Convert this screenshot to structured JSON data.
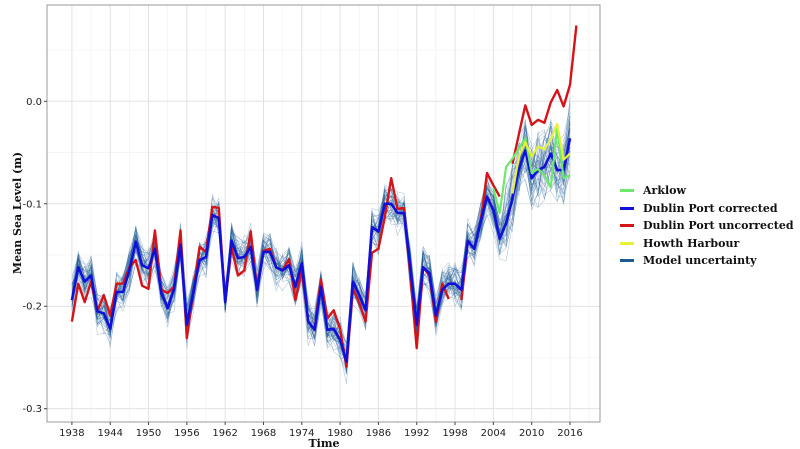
{
  "chart_data": {
    "type": "line",
    "title": "",
    "xlabel": "Time",
    "ylabel": "Mean Sea Level (m)",
    "xlim": [
      1934.1,
      2020.7
    ],
    "ylim": [
      -0.313,
      0.094
    ],
    "x_ticks": [
      "1938",
      "1944",
      "1950",
      "1956",
      "1962",
      "1968",
      "1974",
      "1980",
      "1986",
      "1992",
      "1998",
      "2004",
      "2010",
      "2016"
    ],
    "y_ticks": [
      "-0.3",
      "-0.2",
      "-0.1",
      "0.0"
    ],
    "grid": true,
    "legend_position": "right",
    "colors": {
      "Arklow": "#6ee86a",
      "Dublin Port corrected": "#1010d8",
      "Dublin Port uncorrected": "#d41418",
      "Howth Harbour": "#e6f23a",
      "Model uncertainty": "#1d5a92"
    },
    "series": [
      {
        "name": "Model uncertainty",
        "note_visible": false
      },
      {
        "name": "Dublin Port uncorrected",
        "x": [
          1938,
          1939,
          1940,
          1941,
          1942,
          1943,
          1944,
          1945,
          1946,
          1947,
          1948,
          1949,
          1950,
          1951,
          1952,
          1953,
          1954,
          1955,
          1956,
          1957,
          1958,
          1959,
          1960,
          1961,
          1962,
          1963,
          1964,
          1965,
          1966,
          1967,
          1968,
          1969,
          1970,
          1971,
          1972,
          1973,
          1974,
          1975,
          1976,
          1977,
          1978,
          1979,
          1980,
          1981,
          1982,
          1983,
          1984,
          1985,
          1986,
          1987,
          1988,
          1989,
          1990,
          1991,
          1992,
          1993,
          1994,
          1995,
          1996,
          1997,
          1998,
          1999,
          2000,
          2001,
          2002,
          2003,
          2004,
          2005,
          2006,
          2007,
          2008,
          2009,
          2010,
          2011,
          2012,
          2013,
          2014,
          2015,
          2016,
          2017
        ],
        "values": [
          -0.215,
          -0.178,
          -0.196,
          -0.176,
          -0.205,
          -0.189,
          -0.209,
          -0.178,
          -0.178,
          -0.162,
          -0.155,
          -0.18,
          -0.183,
          -0.126,
          -0.184,
          -0.187,
          -0.181,
          -0.126,
          -0.231,
          -0.187,
          -0.142,
          -0.147,
          -0.103,
          -0.104,
          -0.196,
          -0.142,
          -0.17,
          -0.165,
          -0.127,
          -0.184,
          -0.146,
          -0.144,
          -0.162,
          -0.165,
          -0.154,
          -0.194,
          -0.165,
          -0.215,
          -0.223,
          -0.174,
          -0.212,
          -0.204,
          -0.222,
          -0.259,
          -0.183,
          -0.197,
          -0.215,
          -0.148,
          -0.144,
          -0.113,
          -0.075,
          -0.105,
          -0.104,
          -0.17,
          -0.241,
          -0.162,
          -0.17,
          -0.215,
          -0.178,
          -0.193,
          null,
          -0.194,
          -0.136,
          -0.144,
          -0.118,
          -0.07,
          -0.082,
          -0.093,
          null,
          -0.061,
          -0.032,
          -0.004,
          -0.023,
          -0.018,
          -0.021,
          -0.001,
          0.011,
          -0.005,
          0.016,
          0.074
        ]
      },
      {
        "name": "Dublin Port corrected",
        "x": [
          1938,
          1939,
          1940,
          1941,
          1942,
          1943,
          1944,
          1945,
          1946,
          1947,
          1948,
          1949,
          1950,
          1951,
          1952,
          1953,
          1954,
          1955,
          1956,
          1957,
          1958,
          1959,
          1960,
          1961,
          1962,
          1963,
          1964,
          1965,
          1966,
          1967,
          1968,
          1969,
          1970,
          1971,
          1972,
          1973,
          1974,
          1975,
          1976,
          1977,
          1978,
          1979,
          1980,
          1981,
          1982,
          1983,
          1984,
          1985,
          1986,
          1987,
          1988,
          1989,
          1990,
          1991,
          1992,
          1993,
          1994,
          1995,
          1996,
          1997,
          1998,
          1999,
          2000,
          2001,
          2002,
          2003,
          2004,
          2005,
          2006,
          2007,
          2008,
          2009,
          2010,
          2011,
          2012,
          2013,
          2014,
          2015,
          2016
        ],
        "values": [
          -0.194,
          -0.162,
          -0.176,
          -0.17,
          -0.205,
          -0.207,
          -0.222,
          -0.186,
          -0.186,
          -0.165,
          -0.137,
          -0.16,
          -0.163,
          -0.144,
          -0.187,
          -0.202,
          -0.183,
          -0.14,
          -0.218,
          -0.187,
          -0.155,
          -0.152,
          -0.111,
          -0.114,
          -0.196,
          -0.136,
          -0.153,
          -0.152,
          -0.142,
          -0.184,
          -0.147,
          -0.147,
          -0.162,
          -0.165,
          -0.16,
          -0.181,
          -0.158,
          -0.215,
          -0.223,
          -0.181,
          -0.223,
          -0.222,
          -0.233,
          -0.254,
          -0.176,
          -0.189,
          -0.204,
          -0.123,
          -0.127,
          -0.1,
          -0.1,
          -0.109,
          -0.109,
          -0.162,
          -0.218,
          -0.162,
          -0.168,
          -0.209,
          -0.184,
          -0.178,
          -0.178,
          -0.184,
          -0.136,
          -0.144,
          -0.118,
          -0.093,
          -0.106,
          -0.134,
          -0.119,
          -0.095,
          -0.066,
          -0.048,
          -0.075,
          -0.067,
          -0.064,
          -0.051,
          -0.067,
          -0.067,
          -0.036
        ]
      },
      {
        "name": "Arklow",
        "x": [
          2004,
          2005,
          2006,
          2007,
          2008,
          2009,
          2010,
          2011,
          2012,
          2013,
          2014,
          2015,
          2016
        ],
        "values": [
          -0.085,
          -0.109,
          -0.064,
          -0.056,
          -0.046,
          -0.036,
          -0.07,
          -0.066,
          -0.072,
          -0.084,
          -0.026,
          -0.075,
          -0.072
        ]
      },
      {
        "name": "Howth Harbour",
        "x": [
          2007,
          2008,
          2009,
          2010,
          2011,
          2012,
          2013,
          2014,
          2015,
          2016
        ],
        "values": [
          -0.09,
          -0.054,
          -0.04,
          -0.054,
          -0.044,
          -0.047,
          -0.037,
          -0.022,
          -0.057,
          -0.051
        ]
      }
    ],
    "legend": [
      "Arklow",
      "Dublin Port corrected",
      "Dublin Port uncorrected",
      "Howth Harbour",
      "Model uncertainty"
    ]
  }
}
